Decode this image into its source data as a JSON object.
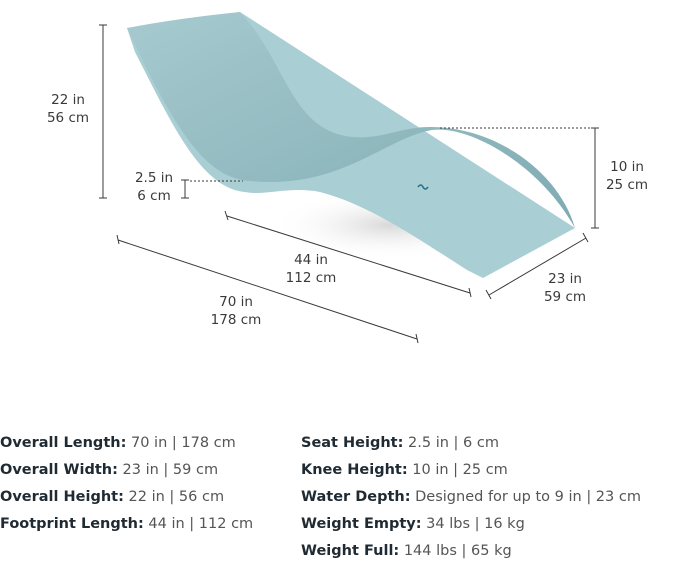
{
  "colors": {
    "chair_top": "#93bcc2",
    "chair_side": "#a9ced3",
    "line": "#3a3a3a"
  },
  "dimensions": {
    "height": {
      "in": "22 in",
      "cm": "56 cm"
    },
    "seat": {
      "in": "2.5 in",
      "cm": "6 cm"
    },
    "knee": {
      "in": "10 in",
      "cm": "25 cm"
    },
    "footprint": {
      "in": "44 in",
      "cm": "112 cm"
    },
    "length": {
      "in": "70 in",
      "cm": "178 cm"
    },
    "width": {
      "in": "23 in",
      "cm": "59 cm"
    }
  },
  "specs_left": [
    {
      "label": "Overall Length:",
      "value": "70 in | 178 cm"
    },
    {
      "label": "Overall Width:",
      "value": "23 in | 59 cm"
    },
    {
      "label": "Overall Height:",
      "value": "22 in | 56 cm"
    },
    {
      "label": "Footprint Length:",
      "value": "44 in | 112 cm"
    }
  ],
  "specs_right": [
    {
      "label": "Seat Height:",
      "value": "2.5 in | 6 cm"
    },
    {
      "label": "Knee Height:",
      "value": "10 in | 25 cm"
    },
    {
      "label": "Water Depth:",
      "value": "Designed for up to 9 in | 23 cm"
    },
    {
      "label": "Weight Empty:",
      "value": "34 lbs | 16 kg"
    },
    {
      "label": "Weight Full:",
      "value": "144 lbs | 65 kg"
    }
  ]
}
